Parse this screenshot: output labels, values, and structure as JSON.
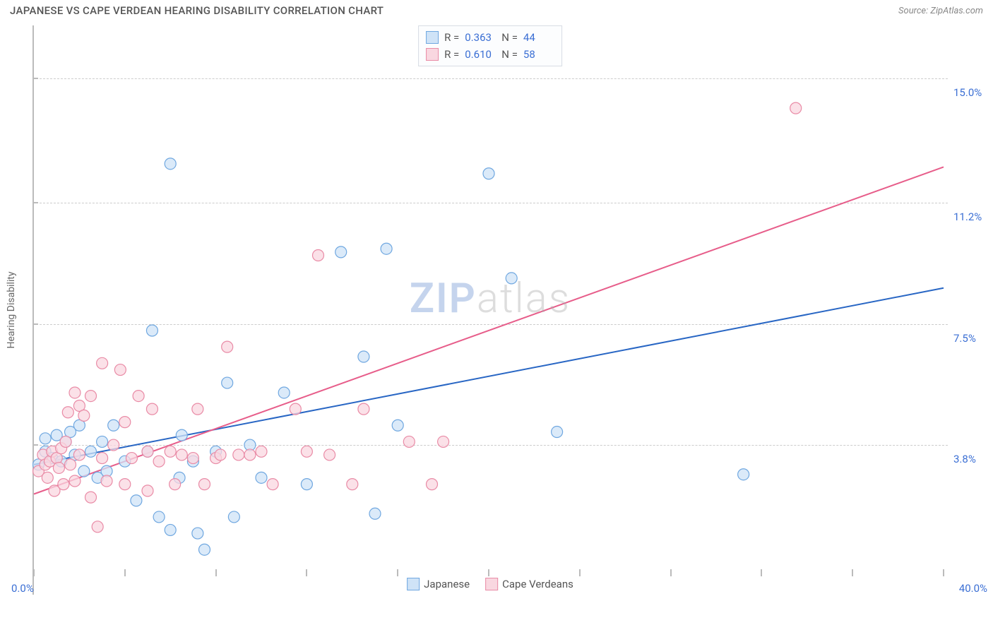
{
  "title": "JAPANESE VS CAPE VERDEAN HEARING DISABILITY CORRELATION CHART",
  "source": "Source: ZipAtlas.com",
  "ylabel": "Hearing Disability",
  "watermark": {
    "prefix": "ZIP",
    "suffix": "atlas"
  },
  "chart": {
    "type": "scatter",
    "xlim": [
      0,
      40
    ],
    "ylim": [
      0,
      16.5
    ],
    "x_axis_labels": [
      {
        "v": 0.0,
        "label": "0.0%",
        "pos": "left"
      },
      {
        "v": 40.0,
        "label": "40.0%",
        "pos": "right"
      }
    ],
    "y_grid": [
      {
        "v": 3.8,
        "label": "3.8%"
      },
      {
        "v": 7.5,
        "label": "7.5%"
      },
      {
        "v": 11.2,
        "label": "11.2%"
      },
      {
        "v": 15.0,
        "label": "15.0%"
      }
    ],
    "x_ticks": [
      0,
      4,
      8,
      12,
      16,
      20,
      24,
      28,
      32,
      36,
      40
    ],
    "background_color": "#ffffff",
    "grid_color": "#cccccc",
    "marker_radius": 8,
    "marker_stroke_width": 1.2,
    "line_width": 2,
    "series": [
      {
        "name": "Japanese",
        "fill": "#cfe3f7",
        "stroke": "#6fa7e0",
        "line_color": "#2866c4",
        "R": "0.363",
        "N": "44",
        "trend": {
          "x1": 0,
          "y1": 3.2,
          "x2": 40,
          "y2": 8.6
        },
        "points": [
          [
            0.2,
            3.2
          ],
          [
            0.5,
            3.6
          ],
          [
            0.5,
            4.0
          ],
          [
            0.8,
            3.4
          ],
          [
            1.0,
            4.1
          ],
          [
            1.2,
            3.3
          ],
          [
            1.4,
            3.9
          ],
          [
            1.6,
            4.2
          ],
          [
            1.8,
            3.5
          ],
          [
            2.0,
            4.4
          ],
          [
            2.2,
            3.0
          ],
          [
            2.5,
            3.6
          ],
          [
            2.8,
            2.8
          ],
          [
            3.0,
            3.9
          ],
          [
            3.2,
            3.0
          ],
          [
            3.5,
            4.4
          ],
          [
            4.0,
            3.3
          ],
          [
            4.5,
            2.1
          ],
          [
            5.0,
            3.6
          ],
          [
            5.2,
            7.3
          ],
          [
            5.5,
            1.6
          ],
          [
            6.0,
            12.4
          ],
          [
            6.0,
            1.2
          ],
          [
            6.4,
            2.8
          ],
          [
            6.5,
            4.1
          ],
          [
            7.0,
            3.3
          ],
          [
            7.2,
            1.1
          ],
          [
            7.5,
            0.6
          ],
          [
            8.0,
            3.6
          ],
          [
            8.5,
            5.7
          ],
          [
            8.8,
            1.6
          ],
          [
            9.5,
            3.8
          ],
          [
            10.0,
            2.8
          ],
          [
            11.0,
            5.4
          ],
          [
            12.0,
            2.6
          ],
          [
            13.5,
            9.7
          ],
          [
            14.5,
            6.5
          ],
          [
            15.0,
            1.7
          ],
          [
            15.5,
            9.8
          ],
          [
            16.0,
            4.4
          ],
          [
            20.0,
            12.1
          ],
          [
            21.0,
            8.9
          ],
          [
            23.0,
            4.2
          ],
          [
            31.2,
            2.9
          ]
        ]
      },
      {
        "name": "Cape Verdeans",
        "fill": "#f9d7e0",
        "stroke": "#e98ba6",
        "line_color": "#e75d8a",
        "R": "0.610",
        "N": "58",
        "trend": {
          "x1": 0,
          "y1": 2.3,
          "x2": 40,
          "y2": 12.3
        },
        "points": [
          [
            0.2,
            3.0
          ],
          [
            0.4,
            3.5
          ],
          [
            0.5,
            3.2
          ],
          [
            0.6,
            2.8
          ],
          [
            0.7,
            3.3
          ],
          [
            0.8,
            3.6
          ],
          [
            0.9,
            2.4
          ],
          [
            1.0,
            3.4
          ],
          [
            1.1,
            3.1
          ],
          [
            1.2,
            3.7
          ],
          [
            1.3,
            2.6
          ],
          [
            1.4,
            3.9
          ],
          [
            1.5,
            4.8
          ],
          [
            1.6,
            3.2
          ],
          [
            1.8,
            5.4
          ],
          [
            1.8,
            2.7
          ],
          [
            2.0,
            3.5
          ],
          [
            2.0,
            5.0
          ],
          [
            2.2,
            4.7
          ],
          [
            2.5,
            5.3
          ],
          [
            2.5,
            2.2
          ],
          [
            2.8,
            1.3
          ],
          [
            3.0,
            6.3
          ],
          [
            3.0,
            3.4
          ],
          [
            3.2,
            2.7
          ],
          [
            3.5,
            3.8
          ],
          [
            3.8,
            6.1
          ],
          [
            4.0,
            4.5
          ],
          [
            4.0,
            2.6
          ],
          [
            4.3,
            3.4
          ],
          [
            4.6,
            5.3
          ],
          [
            5.0,
            3.6
          ],
          [
            5.0,
            2.4
          ],
          [
            5.2,
            4.9
          ],
          [
            5.5,
            3.3
          ],
          [
            6.0,
            3.6
          ],
          [
            6.2,
            2.6
          ],
          [
            6.5,
            3.5
          ],
          [
            7.0,
            3.4
          ],
          [
            7.2,
            4.9
          ],
          [
            7.5,
            2.6
          ],
          [
            8.0,
            3.4
          ],
          [
            8.2,
            3.5
          ],
          [
            8.5,
            6.8
          ],
          [
            9.0,
            3.5
          ],
          [
            9.5,
            3.5
          ],
          [
            10.0,
            3.6
          ],
          [
            10.5,
            2.6
          ],
          [
            11.5,
            4.9
          ],
          [
            12.0,
            3.6
          ],
          [
            12.5,
            9.6
          ],
          [
            13.0,
            3.5
          ],
          [
            14.0,
            2.6
          ],
          [
            14.5,
            4.9
          ],
          [
            16.5,
            3.9
          ],
          [
            17.5,
            2.6
          ],
          [
            18.0,
            3.9
          ],
          [
            33.5,
            14.1
          ]
        ]
      }
    ]
  },
  "legend_bottom": [
    "Japanese",
    "Cape Verdeans"
  ],
  "colors": {
    "title": "#555555",
    "source": "#888888",
    "axis_label": "#666666",
    "value_text": "#3b6fd4"
  }
}
